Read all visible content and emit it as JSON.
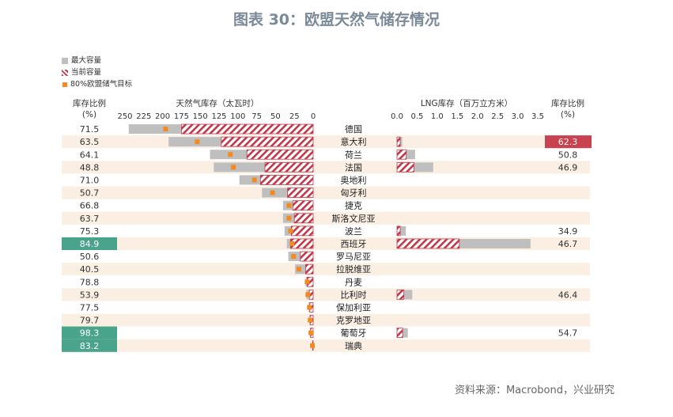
{
  "title": "图表 30：欧盟天然气储存情况",
  "source": "资料来源：Macrobond，兴业研究",
  "legend": [
    {
      "label": "最大容量",
      "style": "solid",
      "color": "#bfbfbf"
    },
    {
      "label": "当前容量",
      "style": "hatch",
      "color": "#c0394b"
    },
    {
      "label": "80%欧盟储气目标",
      "style": "marker",
      "color": "#f28a1e"
    }
  ],
  "headers": {
    "ratio_left": "库存比例",
    "ratio_left_unit": "(%)",
    "storage": "天然气库存（太瓦时）",
    "lng": "LNG库存（百万立方米）",
    "ratio_right": "库存比例",
    "ratio_right_unit": "(%)"
  },
  "colors": {
    "band": "#fbeee3",
    "max_bar": "#bfbfbf",
    "current_hatch": "#c0394b",
    "target_marker": "#f28a1e",
    "highlight_green": "#4aa38b",
    "highlight_red": "#c8424f"
  },
  "chart_data": {
    "type": "bar",
    "countries": [
      "德国",
      "意大利",
      "荷兰",
      "法国",
      "奥地利",
      "匈牙利",
      "捷克",
      "斯洛文尼亚",
      "波兰",
      "西班牙",
      "罗马尼亚",
      "拉脱维亚",
      "丹麦",
      "比利时",
      "保加利亚",
      "克罗地亚",
      "葡萄牙",
      "瑞典"
    ],
    "storage_ratio_labels": [
      "71.5",
      "63.5",
      "64.1",
      "48.8",
      "71.0",
      "50.7",
      "66.8",
      "63.7",
      "75.3",
      "84.9",
      "50.6",
      "40.5",
      "78.8",
      "53.9",
      "77.5",
      "79.7",
      "98.3",
      "83.2"
    ],
    "storage_ratio_highlight": [
      false,
      false,
      false,
      false,
      false,
      false,
      false,
      false,
      false,
      true,
      false,
      false,
      false,
      false,
      false,
      false,
      true,
      true
    ],
    "storage_axis": {
      "reversed": true,
      "ticks": [
        "250",
        "225",
        "200",
        "175",
        "150",
        "125",
        "100",
        "75",
        "50",
        "25",
        "0"
      ],
      "lim": [
        0,
        250
      ]
    },
    "storage_max": [
      245,
      192,
      137,
      132,
      98,
      68,
      40,
      40,
      38,
      35,
      33,
      24,
      10,
      9,
      6,
      5,
      4,
      1
    ],
    "storage_current": [
      175,
      122,
      88,
      64,
      70,
      34,
      27,
      25,
      29,
      30,
      17,
      10,
      8,
      5,
      4.5,
      4,
      3.5,
      0.7
    ],
    "storage_target_80": [
      196,
      154,
      110,
      106,
      78,
      54,
      32,
      32,
      30,
      28,
      26,
      19,
      8,
      7,
      5,
      4,
      3,
      1
    ],
    "lng_axis": {
      "ticks": [
        "0.0",
        "0.5",
        "1.0",
        "1.5",
        "2.0",
        "2.5",
        "3.0",
        "3.5"
      ],
      "lim": [
        0,
        3.5
      ]
    },
    "lng_max": [
      null,
      0.13,
      0.45,
      0.9,
      null,
      null,
      null,
      null,
      0.22,
      3.32,
      null,
      null,
      null,
      0.38,
      null,
      null,
      0.27,
      null
    ],
    "lng_current": [
      null,
      0.08,
      0.23,
      0.42,
      null,
      null,
      null,
      null,
      0.08,
      1.55,
      null,
      null,
      null,
      0.17,
      null,
      null,
      0.14,
      null
    ],
    "lng_ratio_labels": [
      "",
      "62.3",
      "50.8",
      "46.9",
      "",
      "",
      "",
      "",
      "34.9",
      "46.7",
      "",
      "",
      "",
      "46.4",
      "",
      "",
      "54.7",
      ""
    ],
    "lng_ratio_highlight": [
      false,
      true,
      false,
      false,
      false,
      false,
      false,
      false,
      false,
      false,
      false,
      false,
      false,
      false,
      false,
      false,
      false,
      false
    ]
  }
}
